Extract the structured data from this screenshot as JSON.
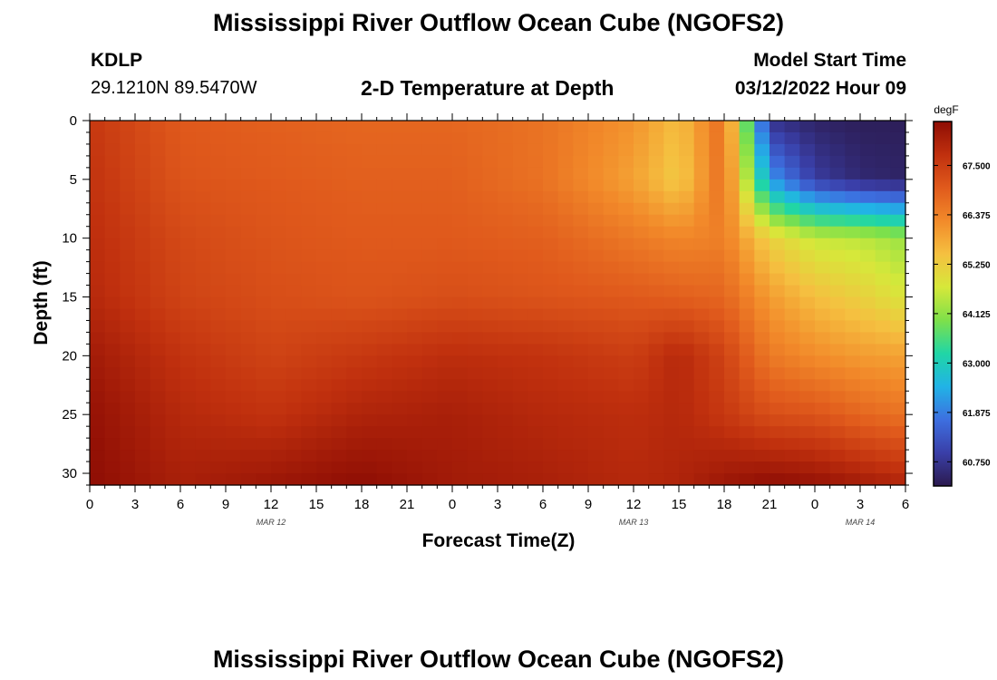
{
  "page": {
    "title": "Mississippi River Outflow Ocean Cube (NGOFS2)",
    "station_id": "KDLP",
    "station_coords": "29.1210N  89.5470W",
    "subtitle": "2-D Temperature at Depth",
    "model_start_label": "Model Start Time",
    "model_start_value": "03/12/2022 Hour 09",
    "bottom_title": "Mississippi River Outflow Ocean Cube (NGOFS2)"
  },
  "chart_data": {
    "type": "heatmap",
    "title": "2-D Temperature at Depth",
    "xlabel": "Forecast Time(Z)",
    "ylabel": "Depth (ft)",
    "x_ticks": [
      "0",
      "3",
      "6",
      "9",
      "12",
      "15",
      "18",
      "21",
      "0",
      "3",
      "6",
      "9",
      "12",
      "15",
      "18",
      "21",
      "0",
      "3",
      "6"
    ],
    "x_range_hours": [
      0,
      54
    ],
    "y_ticks": [
      "0",
      "5",
      "10",
      "15",
      "20",
      "25",
      "30"
    ],
    "y_range": [
      0,
      31
    ],
    "y_inverted": true,
    "date_labels": [
      {
        "text": "MAR 12",
        "hour": 12
      },
      {
        "text": "MAR 13",
        "hour": 36
      },
      {
        "text": "MAR 14",
        "hour": 51
      }
    ],
    "colorbar": {
      "unit": "degF",
      "range": [
        60.2,
        68.5
      ],
      "ticks": [
        "67.500",
        "66.375",
        "65.250",
        "64.125",
        "63.000",
        "61.875",
        "60.750"
      ],
      "colors": [
        "#2b1a4e",
        "#3a3fa8",
        "#3d6fe0",
        "#21b3e6",
        "#20d6a6",
        "#7ee04a",
        "#d6e83a",
        "#f5c040",
        "#f28a2a",
        "#e05a1c",
        "#c0300e",
        "#8e0d04"
      ]
    },
    "temperature_grid": {
      "depths_ft": [
        0,
        5,
        10,
        15,
        20,
        25,
        31
      ],
      "hours": [
        0,
        6,
        12,
        18,
        24,
        30,
        36,
        39,
        42,
        45,
        48,
        51,
        54
      ],
      "values_degF": [
        [
          67.6,
          67.0,
          66.9,
          66.8,
          66.8,
          66.6,
          66.1,
          65.5,
          66.7,
          60.7,
          60.4,
          60.3,
          60.3
        ],
        [
          67.7,
          67.1,
          67.0,
          66.9,
          66.9,
          66.6,
          65.9,
          65.3,
          66.7,
          62.2,
          60.9,
          60.5,
          60.4
        ],
        [
          67.8,
          67.3,
          67.1,
          67.0,
          67.0,
          66.9,
          66.5,
          66.3,
          66.4,
          65.2,
          64.6,
          64.5,
          64.2
        ],
        [
          67.9,
          67.4,
          67.2,
          67.1,
          67.2,
          67.1,
          67.0,
          66.9,
          66.8,
          66.0,
          65.5,
          65.2,
          64.8
        ],
        [
          68.2,
          67.7,
          67.4,
          67.6,
          67.8,
          67.7,
          67.5,
          67.9,
          67.4,
          66.5,
          66.2,
          66.0,
          65.9
        ],
        [
          68.4,
          67.9,
          67.7,
          68.0,
          68.1,
          67.9,
          67.8,
          67.9,
          67.6,
          67.2,
          67.1,
          66.8,
          66.6
        ],
        [
          68.5,
          68.1,
          68.3,
          68.5,
          68.2,
          68.1,
          67.9,
          68.0,
          68.3,
          68.5,
          68.4,
          68.2,
          68.0
        ]
      ]
    }
  }
}
